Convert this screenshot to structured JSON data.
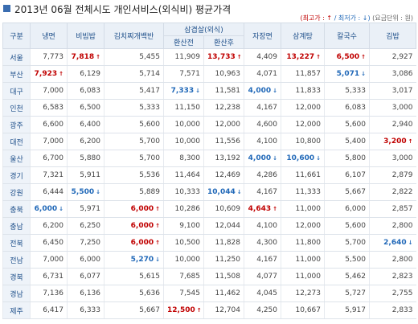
{
  "header": {
    "title": "2013년 06월 전체시도 개인서비스(외식비) 평균가격",
    "legend_high": "(최고가 : ↑",
    "legend_low": "/ 최저가 : ↓)",
    "unit": "(요금단위 : 원)"
  },
  "table": {
    "columns": [
      "구분",
      "냉면",
      "비빔밥",
      "김치찌개백반",
      "삼겹살(외식)",
      "자장면",
      "삼계탕",
      "칼국수",
      "김밥"
    ],
    "subcolumns": [
      "환산전",
      "환산후"
    ],
    "rows": [
      {
        "region": "서울",
        "cells": [
          "7,773",
          "7,818",
          "5,455",
          "11,909",
          "13,733",
          "4,409",
          "13,227",
          "6,500",
          "2,927"
        ],
        "flags": [
          null,
          "max",
          null,
          null,
          "max",
          null,
          "max",
          "max",
          null
        ]
      },
      {
        "region": "부산",
        "cells": [
          "7,923",
          "6,129",
          "5,714",
          "7,571",
          "10,963",
          "4,071",
          "11,857",
          "5,071",
          "3,086"
        ],
        "flags": [
          "max",
          null,
          null,
          null,
          null,
          null,
          null,
          "min",
          null
        ]
      },
      {
        "region": "대구",
        "cells": [
          "7,000",
          "6,083",
          "5,417",
          "7,333",
          "11,581",
          "4,000",
          "11,833",
          "5,333",
          "3,017"
        ],
        "flags": [
          null,
          null,
          null,
          "min",
          null,
          "min",
          null,
          null,
          null
        ]
      },
      {
        "region": "인천",
        "cells": [
          "6,583",
          "6,500",
          "5,333",
          "11,150",
          "12,238",
          "4,167",
          "12,000",
          "6,083",
          "3,000"
        ],
        "flags": [
          null,
          null,
          null,
          null,
          null,
          null,
          null,
          null,
          null
        ]
      },
      {
        "region": "광주",
        "cells": [
          "6,600",
          "6,400",
          "5,600",
          "10,000",
          "12,000",
          "4,600",
          "12,000",
          "5,600",
          "2,940"
        ],
        "flags": [
          null,
          null,
          null,
          null,
          null,
          null,
          null,
          null,
          null
        ]
      },
      {
        "region": "대전",
        "cells": [
          "7,000",
          "6,200",
          "5,700",
          "10,000",
          "11,556",
          "4,100",
          "10,800",
          "5,400",
          "3,200"
        ],
        "flags": [
          null,
          null,
          null,
          null,
          null,
          null,
          null,
          null,
          "max"
        ]
      },
      {
        "region": "울산",
        "cells": [
          "6,700",
          "5,880",
          "5,700",
          "8,300",
          "13,192",
          "4,000",
          "10,600",
          "5,800",
          "3,000"
        ],
        "flags": [
          null,
          null,
          null,
          null,
          null,
          "min",
          "min",
          null,
          null
        ]
      },
      {
        "region": "경기",
        "cells": [
          "7,321",
          "5,911",
          "5,536",
          "11,464",
          "12,469",
          "4,286",
          "11,661",
          "6,107",
          "2,879"
        ],
        "flags": [
          null,
          null,
          null,
          null,
          null,
          null,
          null,
          null,
          null
        ]
      },
      {
        "region": "강원",
        "cells": [
          "6,444",
          "5,500",
          "5,889",
          "10,333",
          "10,044",
          "4,167",
          "11,333",
          "5,667",
          "2,822"
        ],
        "flags": [
          null,
          "min",
          null,
          null,
          "min",
          null,
          null,
          null,
          null
        ]
      },
      {
        "region": "충북",
        "cells": [
          "6,000",
          "5,971",
          "6,000",
          "10,286",
          "10,609",
          "4,643",
          "11,000",
          "6,000",
          "2,857"
        ],
        "flags": [
          "min",
          null,
          "max",
          null,
          null,
          "max",
          null,
          null,
          null
        ]
      },
      {
        "region": "충남",
        "cells": [
          "6,200",
          "6,250",
          "6,000",
          "9,100",
          "12,044",
          "4,100",
          "12,000",
          "5,600",
          "2,800"
        ],
        "flags": [
          null,
          null,
          "max",
          null,
          null,
          null,
          null,
          null,
          null
        ]
      },
      {
        "region": "전북",
        "cells": [
          "6,450",
          "7,250",
          "6,000",
          "10,500",
          "11,828",
          "4,300",
          "11,800",
          "5,700",
          "2,640"
        ],
        "flags": [
          null,
          null,
          "max",
          null,
          null,
          null,
          null,
          null,
          "min"
        ]
      },
      {
        "region": "전남",
        "cells": [
          "7,000",
          "6,000",
          "5,270",
          "10,000",
          "11,250",
          "4,167",
          "11,000",
          "5,500",
          "2,800"
        ],
        "flags": [
          null,
          null,
          "min",
          null,
          null,
          null,
          null,
          null,
          null
        ]
      },
      {
        "region": "경북",
        "cells": [
          "6,731",
          "6,077",
          "5,615",
          "7,685",
          "11,508",
          "4,077",
          "11,000",
          "5,462",
          "2,823"
        ],
        "flags": [
          null,
          null,
          null,
          null,
          null,
          null,
          null,
          null,
          null
        ]
      },
      {
        "region": "경남",
        "cells": [
          "7,136",
          "6,136",
          "5,636",
          "7,545",
          "11,462",
          "4,045",
          "12,273",
          "5,727",
          "2,755"
        ],
        "flags": [
          null,
          null,
          null,
          null,
          null,
          null,
          null,
          null,
          null
        ]
      },
      {
        "region": "제주",
        "cells": [
          "6,417",
          "6,333",
          "5,667",
          "12,500",
          "12,704",
          "4,250",
          "10,667",
          "5,917",
          "2,833"
        ],
        "flags": [
          null,
          null,
          null,
          "max",
          null,
          null,
          null,
          null,
          null
        ]
      }
    ]
  }
}
